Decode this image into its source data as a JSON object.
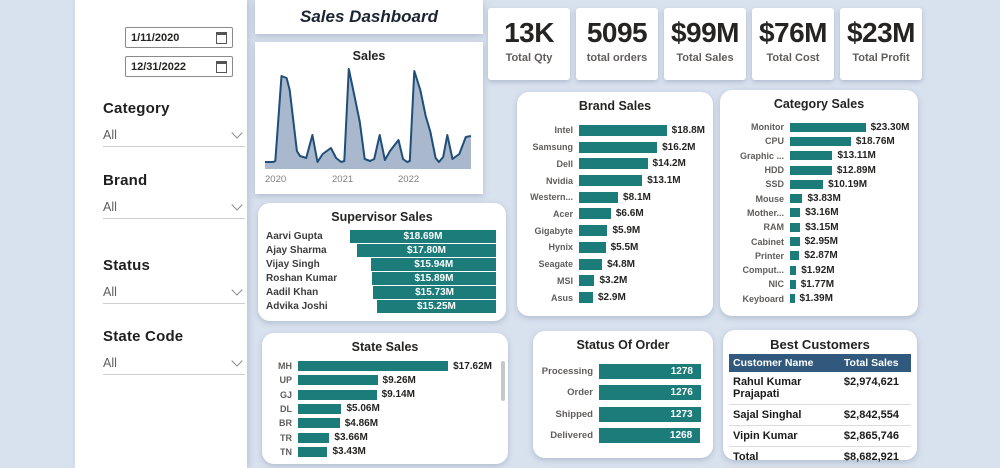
{
  "title": "Sales Dashboard",
  "colors": {
    "teal": "#1b7c7a",
    "header_blue": "#31597d",
    "background": "#d8e1ee",
    "area_line": "#1f4e79",
    "area_fill": "#a9b8cc"
  },
  "filters": {
    "dates": [
      {
        "value": "1/11/2020"
      },
      {
        "value": "12/31/2022"
      }
    ],
    "fields": [
      {
        "label": "Category",
        "value": "All"
      },
      {
        "label": "Brand",
        "value": "All"
      },
      {
        "label": "Status",
        "value": "All"
      },
      {
        "label": "State Code",
        "value": "All"
      }
    ]
  },
  "kpis": [
    {
      "value": "13K",
      "label": "Total Qty"
    },
    {
      "value": "5095",
      "label": "total orders"
    },
    {
      "value": "$99M",
      "label": "Total Sales"
    },
    {
      "value": "$76M",
      "label": "Total Cost"
    },
    {
      "value": "$23M",
      "label": "Total Profit"
    }
  ],
  "chart_data": [
    {
      "id": "sales-trend",
      "type": "area",
      "title": "Sales",
      "x_axis_labels": [
        "2020",
        "2021",
        "2022"
      ],
      "grid": false,
      "points_pct": [
        [
          0,
          7
        ],
        [
          4,
          7
        ],
        [
          5,
          8
        ],
        [
          8,
          93
        ],
        [
          10.5,
          91
        ],
        [
          12,
          79
        ],
        [
          15.5,
          18
        ],
        [
          17,
          13
        ],
        [
          20,
          11
        ],
        [
          23,
          34
        ],
        [
          25.5,
          7
        ],
        [
          28,
          15
        ],
        [
          32,
          21
        ],
        [
          34.5,
          11
        ],
        [
          37,
          7
        ],
        [
          38.5,
          8
        ],
        [
          40.7,
          100
        ],
        [
          42.6,
          81
        ],
        [
          46,
          47
        ],
        [
          48.4,
          10
        ],
        [
          51,
          8
        ],
        [
          53,
          10
        ],
        [
          55.7,
          34
        ],
        [
          58.2,
          9
        ],
        [
          60.7,
          18
        ],
        [
          64.8,
          29
        ],
        [
          67,
          10
        ],
        [
          69,
          7
        ],
        [
          70.3,
          8
        ],
        [
          72.5,
          98
        ],
        [
          75.4,
          79
        ],
        [
          78,
          53
        ],
        [
          80.3,
          37
        ],
        [
          82.8,
          11
        ],
        [
          84.4,
          7
        ],
        [
          86.5,
          12
        ],
        [
          88.5,
          34
        ],
        [
          91,
          10
        ],
        [
          94.3,
          15
        ],
        [
          97.5,
          32
        ],
        [
          100,
          33
        ]
      ]
    },
    {
      "id": "brand-sales",
      "type": "bar",
      "title": "Brand Sales",
      "categories": [
        "Intel",
        "Samsung",
        "Dell",
        "Nvidia",
        "Western...",
        "Acer",
        "Gigabyte",
        "Hynix",
        "Seagate",
        "MSI",
        "Asus"
      ],
      "values": [
        18.8,
        16.2,
        14.2,
        13.1,
        8.1,
        6.6,
        5.9,
        5.5,
        4.8,
        3.2,
        2.9
      ],
      "value_labels": [
        "$18.8M",
        "$16.2M",
        "$14.2M",
        "$13.1M",
        "$8.1M",
        "$6.6M",
        "$5.9M",
        "$5.5M",
        "$4.8M",
        "$3.2M",
        "$2.9M"
      ]
    },
    {
      "id": "category-sales",
      "type": "bar",
      "title": "Category Sales",
      "categories": [
        "Monitor",
        "CPU",
        "Graphic ...",
        "HDD",
        "SSD",
        "Mouse",
        "Mother...",
        "RAM",
        "Cabinet",
        "Printer",
        "Comput...",
        "NIC",
        "Keyboard"
      ],
      "values": [
        23.3,
        18.76,
        13.11,
        12.89,
        10.19,
        3.83,
        3.16,
        3.15,
        2.95,
        2.87,
        1.92,
        1.77,
        1.39
      ],
      "value_labels": [
        "$23.30M",
        "$18.76M",
        "$13.11M",
        "$12.89M",
        "$10.19M",
        "$3.83M",
        "$3.16M",
        "$3.15M",
        "$2.95M",
        "$2.87M",
        "$1.92M",
        "$1.77M",
        "$1.39M"
      ]
    },
    {
      "id": "supervisor-sales",
      "type": "bar",
      "title": "Supervisor Sales",
      "categories": [
        "Aarvi Gupta",
        "Ajay Sharma",
        "Vijay Singh",
        "Roshan Kumar",
        "Aadil Khan",
        "Advika Joshi"
      ],
      "values": [
        18.69,
        17.8,
        15.94,
        15.89,
        15.73,
        15.25
      ],
      "value_labels": [
        "$18.69M",
        "$17.80M",
        "$15.94M",
        "$15.89M",
        "$15.73M",
        "$15.25M"
      ]
    },
    {
      "id": "state-sales",
      "type": "bar",
      "title": "State Sales",
      "categories": [
        "MH",
        "UP",
        "GJ",
        "DL",
        "BR",
        "TR",
        "TN"
      ],
      "values": [
        17.62,
        9.26,
        9.14,
        5.06,
        4.86,
        3.66,
        3.43
      ],
      "value_labels": [
        "$17.62M",
        "$9.26M",
        "$9.14M",
        "$5.06M",
        "$4.86M",
        "$3.66M",
        "$3.43M"
      ]
    },
    {
      "id": "status-of-order",
      "type": "bar",
      "title": "Status Of Order",
      "categories": [
        "Processing",
        "Order",
        "Shipped",
        "Delivered"
      ],
      "values": [
        1278,
        1276,
        1273,
        1268
      ],
      "value_labels": [
        "1278",
        "1276",
        "1273",
        "1268"
      ]
    },
    {
      "id": "best-customers",
      "type": "table",
      "title": "Best Customers",
      "headers": [
        "Customer Name",
        "Total Sales"
      ],
      "rows": [
        [
          "Rahul Kumar Prajapati",
          "$2,974,621"
        ],
        [
          "Sajal Singhal",
          "$2,842,554"
        ],
        [
          "Vipin Kumar",
          "$2,865,746"
        ],
        [
          "Total",
          "$8,682,921"
        ]
      ]
    }
  ]
}
